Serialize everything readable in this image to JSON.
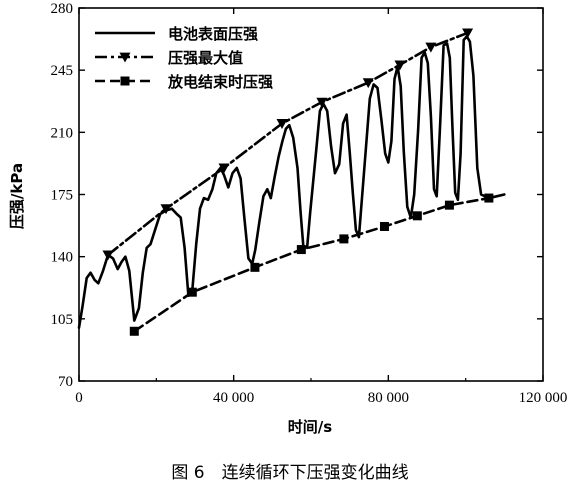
{
  "caption": "图 6　连续循环下压强变化曲线",
  "chart_data": {
    "type": "line",
    "xlabel": "时间/s",
    "ylabel": "压强/kPa",
    "xlim": [
      0,
      120000
    ],
    "ylim": [
      70,
      280
    ],
    "xticks": [
      0,
      40000,
      80000,
      120000
    ],
    "xtick_labels": [
      "0",
      "40 000",
      "80 000",
      "120 000"
    ],
    "yticks": [
      70,
      105,
      140,
      175,
      210,
      245,
      280
    ],
    "ytick_labels": [
      "70",
      "105",
      "140",
      "175",
      "210",
      "245",
      "280"
    ],
    "legend_position": "top-left",
    "series": [
      {
        "name": "电池表面压强",
        "style": "solid",
        "marker": "none",
        "x": [
          0,
          900,
          2000,
          3000,
          4000,
          5000,
          6200,
          7500,
          8800,
          10000,
          11000,
          12000,
          13000,
          14300,
          15500,
          16500,
          17500,
          18500,
          19800,
          21000,
          22500,
          24000,
          25300,
          26300,
          27300,
          28300,
          29300,
          30300,
          31300,
          32300,
          33400,
          34500,
          35500,
          36600,
          37500,
          38600,
          39700,
          40800,
          41800,
          42800,
          43800,
          44800,
          45600,
          46600,
          47700,
          48700,
          49600,
          50600,
          51600,
          52600,
          53500,
          54400,
          55400,
          56500,
          57300,
          58000,
          59000,
          59800,
          60600,
          61400,
          62300,
          63200,
          64200,
          65200,
          66200,
          67300,
          68300,
          69200,
          70000,
          70800,
          71600,
          72400,
          73300,
          74200,
          75200,
          76200,
          77200,
          78200,
          79200,
          80000,
          80800,
          81600,
          82400,
          83200,
          84000,
          84900,
          85800,
          86700,
          87700,
          88600,
          89400,
          90200,
          91000,
          91800,
          92500,
          93400,
          94300,
          95200,
          95900,
          96600,
          97300,
          98000,
          98700,
          99500,
          100300,
          101100,
          102000,
          103000,
          104000,
          106000,
          108000,
          110000
        ],
        "y": [
          100,
          112,
          128,
          131,
          127,
          125,
          132,
          141,
          139,
          133,
          137,
          140,
          132,
          104,
          111,
          131,
          145,
          147,
          156,
          164,
          166,
          167,
          164,
          162,
          145,
          118,
          121,
          147,
          167,
          173,
          172,
          178,
          187,
          190,
          186,
          179,
          187,
          190,
          184,
          161,
          139,
          136,
          144,
          159,
          174,
          178,
          173,
          185,
          196,
          205,
          212,
          214,
          207,
          190,
          165,
          146,
          145,
          165,
          183,
          201,
          222,
          226,
          222,
          202,
          187,
          192,
          215,
          220,
          199,
          176,
          155,
          151,
          176,
          201,
          229,
          237,
          235,
          217,
          198,
          193,
          205,
          240,
          247,
          236,
          199,
          168,
          162,
          175,
          211,
          252,
          255,
          249,
          219,
          178,
          174,
          214,
          259,
          260,
          252,
          212,
          176,
          172,
          198,
          262,
          264,
          261,
          242,
          190,
          175,
          173,
          174,
          175
        ]
      },
      {
        "name": "压强最大值",
        "style": "dash-dot",
        "marker": "triangle-down",
        "x": [
          7500,
          22500,
          37500,
          52500,
          62800,
          74800,
          83000,
          91000,
          100500
        ],
        "y": [
          141,
          167,
          190,
          215,
          227,
          238,
          248,
          258,
          266
        ]
      },
      {
        "name": "放电结束时压强",
        "style": "dashed",
        "marker": "square",
        "x": [
          14300,
          29300,
          45500,
          57500,
          68500,
          79000,
          87500,
          95800,
          106000
        ],
        "y": [
          98,
          120,
          134,
          144,
          150,
          157,
          163,
          169,
          173
        ]
      }
    ]
  }
}
